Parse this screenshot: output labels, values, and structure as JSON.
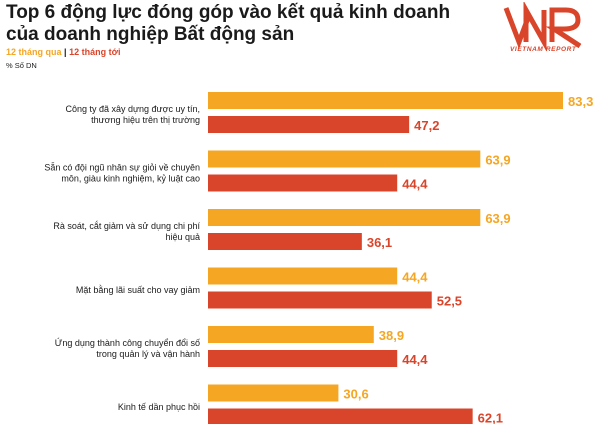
{
  "title": "Top 6 động lực đóng góp vào kết quả kinh doanh của doanh nghiệp Bất động sản",
  "legend": {
    "series1": "12 tháng qua",
    "separator": "|",
    "series2": "12 tháng tới"
  },
  "unit": "% Số DN",
  "logo": {
    "mark": "VNR",
    "text": "VIETNAM REPORT"
  },
  "colors": {
    "series1": "#F5A623",
    "series2": "#D9452B",
    "text": "#1a1a1a"
  },
  "chart_data": {
    "type": "bar",
    "orientation": "horizontal",
    "title": "Top 6 động lực đóng góp vào kết quả kinh doanh của doanh nghiệp Bất động sản",
    "unit": "% Số DN",
    "xlim": [
      0,
      83.3
    ],
    "grid": false,
    "legend_position": "top-left",
    "categories": [
      [
        "Công ty đã xây dựng được uy tín,",
        "thương hiệu trên thị trường"
      ],
      [
        "Sẵn có đội ngũ nhân sự giỏi về chuyên",
        "môn, giàu kinh nghiệm, kỷ luật cao"
      ],
      [
        "Rà soát, cắt giảm và sử dụng chi phí",
        "hiệu quả"
      ],
      [
        "Mặt bằng lãi suất cho vay giảm"
      ],
      [
        "Ứng dụng thành công chuyển đổi số",
        "trong quản lý và vận hành"
      ],
      [
        "Kinh tế dần phục hồi"
      ]
    ],
    "series": [
      {
        "name": "12 tháng qua",
        "color": "#F5A623",
        "values": [
          83.3,
          63.9,
          63.9,
          44.4,
          38.9,
          30.6
        ],
        "labels": [
          "83,3",
          "63,9",
          "63,9",
          "44,4",
          "38,9",
          "30,6"
        ]
      },
      {
        "name": "12 tháng tới",
        "color": "#D9452B",
        "values": [
          47.2,
          44.4,
          36.1,
          52.5,
          44.4,
          62.1
        ],
        "labels": [
          "47,2",
          "44,4",
          "36,1",
          "52,5",
          "44,4",
          "62,1"
        ]
      }
    ]
  }
}
